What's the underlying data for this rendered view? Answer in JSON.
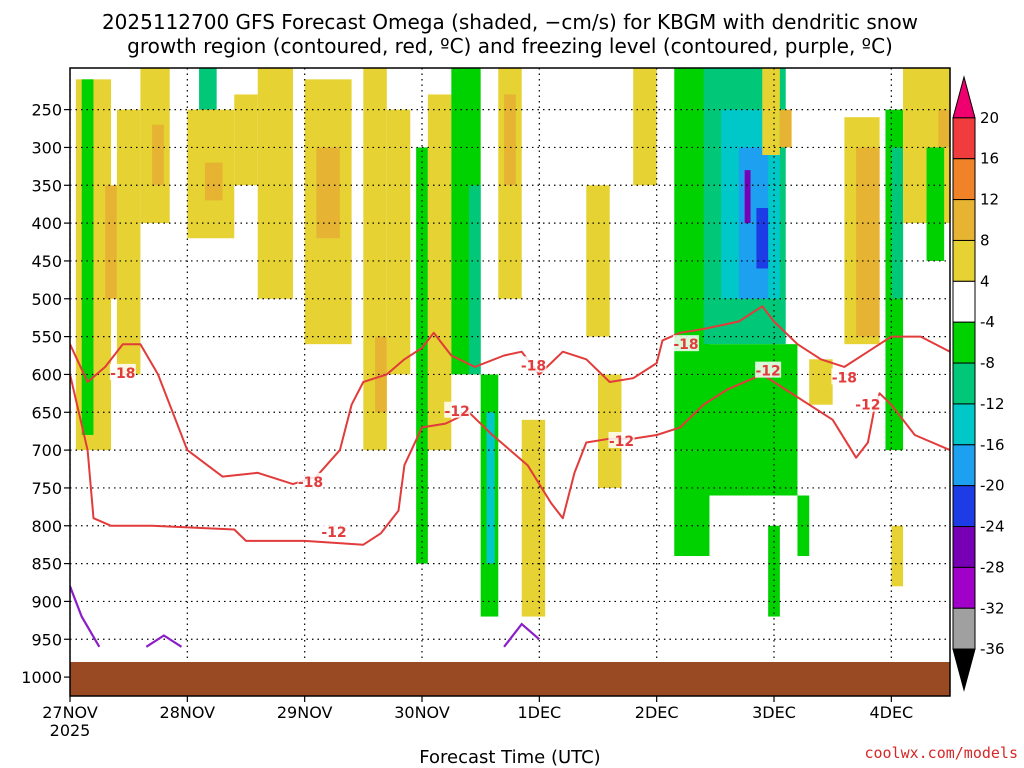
{
  "chart_data": {
    "type": "heatmap",
    "title_lines": [
      "2025112700 GFS Forecast Omega (shaded, −cm/s) for KBGM with dendritic snow",
      "growth region (contoured, red, ºC) and freezing level (contoured, purple, ºC)"
    ],
    "xlabel": "Forecast Time (UTC)",
    "x_ticks": [
      "27NOV",
      "28NOV",
      "29NOV",
      "30NOV",
      "1DEC",
      "2DEC",
      "3DEC",
      "4DEC"
    ],
    "x_year": "2025",
    "x_range_days": [
      0,
      7.5
    ],
    "y_ticks": [
      250,
      300,
      350,
      400,
      450,
      500,
      550,
      600,
      650,
      700,
      750,
      800,
      850,
      900,
      950,
      1000
    ],
    "y_range_hpa": [
      195,
      1025
    ],
    "colorbar": {
      "levels": [
        20,
        16,
        12,
        8,
        4,
        -4,
        -8,
        -12,
        -16,
        -20,
        -24,
        -28,
        -32,
        -36
      ],
      "colors": [
        "#f0006e",
        "#f03c3c",
        "#f08228",
        "#e6b432",
        "#e6d232",
        "#ffffff",
        "#00d200",
        "#00c878",
        "#00c8c8",
        "#1ea0f0",
        "#1e3ce6",
        "#7800b4",
        "#a000c8",
        "#a0a0a0",
        "#000000"
      ]
    },
    "shaded_regions": [
      {
        "start_day": 0.05,
        "end_day": 0.35,
        "top": 210,
        "bottom": 700,
        "value": 6
      },
      {
        "start_day": 0.3,
        "end_day": 0.4,
        "top": 350,
        "bottom": 500,
        "value": 10
      },
      {
        "start_day": 0.1,
        "end_day": 0.2,
        "top": 210,
        "bottom": 680,
        "value": -6
      },
      {
        "start_day": 0.4,
        "end_day": 0.6,
        "top": 250,
        "bottom": 600,
        "value": 6
      },
      {
        "start_day": 0.6,
        "end_day": 0.85,
        "top": 195,
        "bottom": 400,
        "value": 6
      },
      {
        "start_day": 0.7,
        "end_day": 0.8,
        "top": 270,
        "bottom": 350,
        "value": 10
      },
      {
        "start_day": 1.1,
        "end_day": 1.25,
        "top": 195,
        "bottom": 270,
        "value": -10
      },
      {
        "start_day": 1.0,
        "end_day": 1.4,
        "top": 250,
        "bottom": 420,
        "value": 6
      },
      {
        "start_day": 1.15,
        "end_day": 1.3,
        "top": 320,
        "bottom": 370,
        "value": 10
      },
      {
        "start_day": 1.4,
        "end_day": 1.6,
        "top": 230,
        "bottom": 350,
        "value": 6
      },
      {
        "start_day": 1.6,
        "end_day": 1.9,
        "top": 195,
        "bottom": 500,
        "value": 6
      },
      {
        "start_day": 2.0,
        "end_day": 2.4,
        "top": 210,
        "bottom": 560,
        "value": 6
      },
      {
        "start_day": 2.1,
        "end_day": 2.3,
        "top": 300,
        "bottom": 420,
        "value": 10
      },
      {
        "start_day": 2.5,
        "end_day": 2.7,
        "top": 195,
        "bottom": 700,
        "value": 6
      },
      {
        "start_day": 2.7,
        "end_day": 2.9,
        "top": 250,
        "bottom": 600,
        "value": 6
      },
      {
        "start_day": 2.6,
        "end_day": 2.7,
        "top": 550,
        "bottom": 650,
        "value": 10
      },
      {
        "start_day": 2.95,
        "end_day": 3.05,
        "top": 300,
        "bottom": 850,
        "value": -6
      },
      {
        "start_day": 3.05,
        "end_day": 3.25,
        "top": 230,
        "bottom": 700,
        "value": 6
      },
      {
        "start_day": 3.25,
        "end_day": 3.5,
        "top": 195,
        "bottom": 600,
        "value": -6
      },
      {
        "start_day": 3.4,
        "end_day": 3.5,
        "top": 350,
        "bottom": 600,
        "value": -10
      },
      {
        "start_day": 3.5,
        "end_day": 3.65,
        "top": 600,
        "bottom": 920,
        "value": -8
      },
      {
        "start_day": 3.55,
        "end_day": 3.62,
        "top": 650,
        "bottom": 850,
        "value": -14
      },
      {
        "start_day": 3.65,
        "end_day": 3.85,
        "top": 195,
        "bottom": 500,
        "value": 6
      },
      {
        "start_day": 3.7,
        "end_day": 3.8,
        "top": 230,
        "bottom": 350,
        "value": 10
      },
      {
        "start_day": 3.85,
        "end_day": 4.05,
        "top": 660,
        "bottom": 920,
        "value": 6
      },
      {
        "start_day": 4.4,
        "end_day": 4.6,
        "top": 350,
        "bottom": 550,
        "value": 6
      },
      {
        "start_day": 4.5,
        "end_day": 4.7,
        "top": 600,
        "bottom": 750,
        "value": 6
      },
      {
        "start_day": 4.8,
        "end_day": 5.0,
        "top": 195,
        "bottom": 350,
        "value": 6
      },
      {
        "start_day": 5.15,
        "end_day": 5.45,
        "top": 195,
        "bottom": 700,
        "value": -6
      },
      {
        "start_day": 5.15,
        "end_day": 5.45,
        "top": 700,
        "bottom": 840,
        "value": -6
      },
      {
        "start_day": 5.4,
        "end_day": 6.1,
        "top": 195,
        "bottom": 560,
        "value": -10
      },
      {
        "start_day": 5.55,
        "end_day": 6.05,
        "top": 250,
        "bottom": 500,
        "value": -14
      },
      {
        "start_day": 5.7,
        "end_day": 5.95,
        "top": 300,
        "bottom": 500,
        "value": -18
      },
      {
        "start_day": 5.85,
        "end_day": 5.95,
        "top": 380,
        "bottom": 460,
        "value": -22
      },
      {
        "start_day": 5.75,
        "end_day": 5.8,
        "top": 330,
        "bottom": 400,
        "value": -26
      },
      {
        "start_day": 5.4,
        "end_day": 6.2,
        "top": 560,
        "bottom": 760,
        "value": -6
      },
      {
        "start_day": 5.3,
        "end_day": 5.4,
        "top": 760,
        "bottom": 840,
        "value": -6
      },
      {
        "start_day": 6.2,
        "end_day": 6.3,
        "top": 760,
        "bottom": 840,
        "value": -6
      },
      {
        "start_day": 5.95,
        "end_day": 6.05,
        "top": 800,
        "bottom": 920,
        "value": -6
      },
      {
        "start_day": 5.9,
        "end_day": 6.05,
        "top": 195,
        "bottom": 310,
        "value": 6
      },
      {
        "start_day": 6.05,
        "end_day": 6.15,
        "top": 250,
        "bottom": 300,
        "value": 10
      },
      {
        "start_day": 6.3,
        "end_day": 6.5,
        "top": 580,
        "bottom": 640,
        "value": 6
      },
      {
        "start_day": 6.6,
        "end_day": 6.9,
        "top": 260,
        "bottom": 560,
        "value": 6
      },
      {
        "start_day": 6.75,
        "end_day": 6.85,
        "top": 300,
        "bottom": 340,
        "value": 18
      },
      {
        "start_day": 6.75,
        "end_day": 6.85,
        "top": 420,
        "bottom": 490,
        "value": 18
      },
      {
        "start_day": 6.7,
        "end_day": 6.9,
        "top": 300,
        "bottom": 550,
        "value": 10
      },
      {
        "start_day": 6.95,
        "end_day": 7.1,
        "top": 250,
        "bottom": 700,
        "value": -6
      },
      {
        "start_day": 7.0,
        "end_day": 7.1,
        "top": 300,
        "bottom": 500,
        "value": -10
      },
      {
        "start_day": 7.1,
        "end_day": 7.5,
        "top": 195,
        "bottom": 400,
        "value": 6
      },
      {
        "start_day": 7.4,
        "end_day": 7.5,
        "top": 250,
        "bottom": 300,
        "value": 10
      },
      {
        "start_day": 7.3,
        "end_day": 7.45,
        "top": 300,
        "bottom": 450,
        "value": -6
      },
      {
        "start_day": 7.0,
        "end_day": 7.1,
        "top": 800,
        "bottom": 880,
        "value": 6
      }
    ],
    "red_contours": [
      {
        "value": -18,
        "label": "-18",
        "label_points": [
          [
            0.45,
            598
          ],
          [
            2.05,
            742
          ],
          [
            3.95,
            588
          ],
          [
            5.25,
            560
          ],
          [
            6.6,
            604
          ]
        ],
        "points": [
          [
            0.0,
            560
          ],
          [
            0.15,
            610
          ],
          [
            0.3,
            590
          ],
          [
            0.45,
            560
          ],
          [
            0.6,
            560
          ],
          [
            0.75,
            600
          ],
          [
            0.9,
            660
          ],
          [
            1.0,
            700
          ],
          [
            1.3,
            735
          ],
          [
            1.6,
            730
          ],
          [
            1.9,
            745
          ],
          [
            2.1,
            735
          ],
          [
            2.3,
            700
          ],
          [
            2.4,
            640
          ],
          [
            2.5,
            610
          ],
          [
            2.7,
            600
          ],
          [
            2.85,
            580
          ],
          [
            3.0,
            565
          ],
          [
            3.1,
            545
          ],
          [
            3.25,
            575
          ],
          [
            3.45,
            590
          ],
          [
            3.7,
            575
          ],
          [
            3.85,
            570
          ],
          [
            4.0,
            600
          ],
          [
            4.2,
            570
          ],
          [
            4.4,
            580
          ],
          [
            4.6,
            610
          ],
          [
            4.8,
            605
          ],
          [
            5.0,
            585
          ],
          [
            5.05,
            555
          ],
          [
            5.2,
            545
          ],
          [
            5.4,
            540
          ],
          [
            5.7,
            530
          ],
          [
            5.9,
            510
          ],
          [
            6.0,
            530
          ],
          [
            6.2,
            560
          ],
          [
            6.4,
            580
          ],
          [
            6.6,
            590
          ],
          [
            6.8,
            570
          ],
          [
            7.0,
            550
          ],
          [
            7.25,
            550
          ],
          [
            7.5,
            570
          ]
        ]
      },
      {
        "value": -12,
        "label": "-12",
        "label_points": [
          [
            2.25,
            808
          ],
          [
            3.3,
            648
          ],
          [
            4.7,
            688
          ],
          [
            5.95,
            595
          ],
          [
            6.8,
            640
          ]
        ],
        "points": [
          [
            0.0,
            600
          ],
          [
            0.15,
            700
          ],
          [
            0.2,
            790
          ],
          [
            0.35,
            800
          ],
          [
            0.7,
            800
          ],
          [
            1.4,
            805
          ],
          [
            1.5,
            820
          ],
          [
            2.0,
            820
          ],
          [
            2.5,
            825
          ],
          [
            2.65,
            810
          ],
          [
            2.8,
            780
          ],
          [
            2.85,
            720
          ],
          [
            3.0,
            670
          ],
          [
            3.2,
            665
          ],
          [
            3.4,
            650
          ],
          [
            3.6,
            680
          ],
          [
            3.9,
            720
          ],
          [
            4.1,
            770
          ],
          [
            4.2,
            790
          ],
          [
            4.3,
            730
          ],
          [
            4.4,
            690
          ],
          [
            4.6,
            685
          ],
          [
            4.8,
            685
          ],
          [
            5.0,
            680
          ],
          [
            5.2,
            670
          ],
          [
            5.4,
            640
          ],
          [
            5.6,
            620
          ],
          [
            5.9,
            600
          ],
          [
            6.1,
            620
          ],
          [
            6.3,
            640
          ],
          [
            6.5,
            660
          ],
          [
            6.7,
            710
          ],
          [
            6.8,
            690
          ],
          [
            6.85,
            650
          ],
          [
            6.9,
            625
          ],
          [
            7.0,
            640
          ],
          [
            7.2,
            680
          ],
          [
            7.5,
            700
          ]
        ]
      }
    ],
    "purple_contours": [
      {
        "points": [
          [
            0.0,
            880
          ],
          [
            0.1,
            920
          ],
          [
            0.25,
            960
          ]
        ]
      },
      {
        "points": [
          [
            0.65,
            960
          ],
          [
            0.8,
            945
          ],
          [
            0.95,
            960
          ]
        ]
      },
      {
        "points": [
          [
            3.7,
            960
          ],
          [
            3.85,
            930
          ],
          [
            4.0,
            950
          ]
        ]
      }
    ],
    "credit": "coolwx.com/models"
  }
}
